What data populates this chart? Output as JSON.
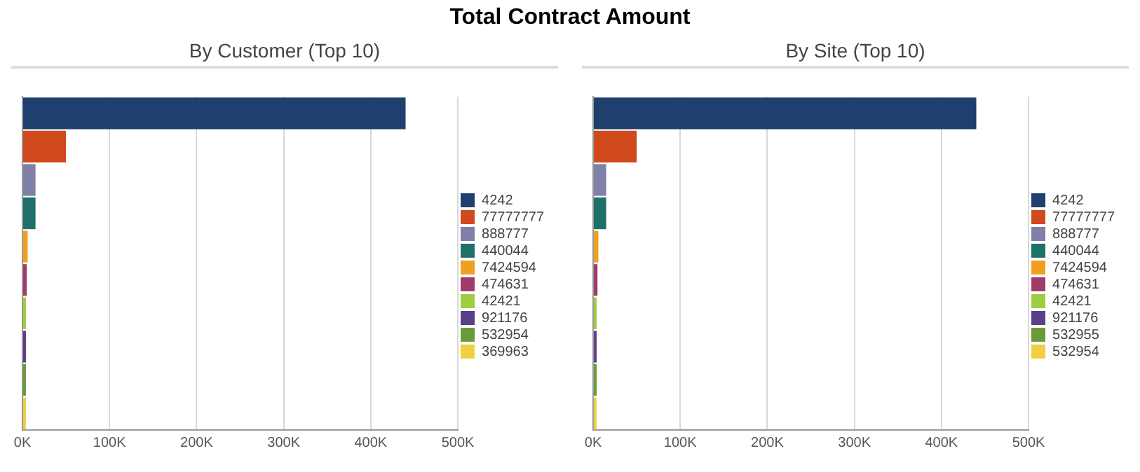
{
  "chart_data": [
    {
      "type": "bar",
      "orientation": "horizontal",
      "title": "Total Contract Amount",
      "subtitle": "By Customer (Top 10)",
      "categories": [
        null,
        null,
        null,
        null,
        null,
        null,
        null,
        null,
        null,
        null
      ],
      "series": [
        {
          "name": "4242",
          "color": "#1f3f6e",
          "values": [
            440000,
            null,
            null,
            null,
            null,
            null,
            null,
            null,
            null,
            null
          ]
        },
        {
          "name": "77777777",
          "color": "#d04a1e",
          "values": [
            null,
            50000,
            null,
            null,
            null,
            null,
            null,
            null,
            null,
            null
          ]
        },
        {
          "name": "888777",
          "color": "#7f7fa8",
          "values": [
            null,
            null,
            15000,
            null,
            null,
            null,
            null,
            null,
            null,
            null
          ]
        },
        {
          "name": "440044",
          "color": "#1e7068",
          "values": [
            null,
            null,
            null,
            15000,
            null,
            null,
            null,
            null,
            null,
            null
          ]
        },
        {
          "name": "7424594",
          "color": "#f0a020",
          "values": [
            null,
            null,
            null,
            null,
            6000,
            null,
            null,
            null,
            null,
            null
          ]
        },
        {
          "name": "474631",
          "color": "#a03c6a",
          "values": [
            null,
            null,
            null,
            null,
            null,
            5000,
            null,
            null,
            null,
            null
          ]
        },
        {
          "name": "42421",
          "color": "#a0cc40",
          "values": [
            null,
            null,
            null,
            null,
            null,
            null,
            4000,
            null,
            null,
            null
          ]
        },
        {
          "name": "921176",
          "color": "#5a4088",
          "values": [
            null,
            null,
            null,
            null,
            null,
            null,
            null,
            4000,
            null,
            null
          ]
        },
        {
          "name": "532954",
          "color": "#6a9a3a",
          "values": [
            null,
            null,
            null,
            null,
            null,
            null,
            null,
            null,
            4000,
            null
          ]
        },
        {
          "name": "369963",
          "color": "#f0d040",
          "values": [
            null,
            null,
            null,
            null,
            null,
            null,
            null,
            null,
            null,
            4000
          ]
        }
      ],
      "xlim": [
        0,
        500000
      ],
      "xticks": [
        {
          "value": 0,
          "label": "0K"
        },
        {
          "value": 100000,
          "label": "100K"
        },
        {
          "value": 200000,
          "label": "200K"
        },
        {
          "value": 300000,
          "label": "300K"
        },
        {
          "value": 400000,
          "label": "400K"
        },
        {
          "value": 500000,
          "label": "500K"
        }
      ],
      "grid": "x",
      "legend": "right",
      "tick_labels": "x"
    },
    {
      "type": "bar",
      "orientation": "horizontal",
      "subtitle": "By Site (Top 10)",
      "categories": [
        null,
        null,
        null,
        null,
        null,
        null,
        null,
        null,
        null,
        null
      ],
      "series": [
        {
          "name": "4242",
          "color": "#1f3f6e",
          "values": [
            440000,
            null,
            null,
            null,
            null,
            null,
            null,
            null,
            null,
            null
          ]
        },
        {
          "name": "77777777",
          "color": "#d04a1e",
          "values": [
            null,
            50000,
            null,
            null,
            null,
            null,
            null,
            null,
            null,
            null
          ]
        },
        {
          "name": "888777",
          "color": "#7f7fa8",
          "values": [
            null,
            null,
            15000,
            null,
            null,
            null,
            null,
            null,
            null,
            null
          ]
        },
        {
          "name": "440044",
          "color": "#1e7068",
          "values": [
            null,
            null,
            null,
            15000,
            null,
            null,
            null,
            null,
            null,
            null
          ]
        },
        {
          "name": "7424594",
          "color": "#f0a020",
          "values": [
            null,
            null,
            null,
            null,
            6000,
            null,
            null,
            null,
            null,
            null
          ]
        },
        {
          "name": "474631",
          "color": "#a03c6a",
          "values": [
            null,
            null,
            null,
            null,
            null,
            5000,
            null,
            null,
            null,
            null
          ]
        },
        {
          "name": "42421",
          "color": "#a0cc40",
          "values": [
            null,
            null,
            null,
            null,
            null,
            null,
            4000,
            null,
            null,
            null
          ]
        },
        {
          "name": "921176",
          "color": "#5a4088",
          "values": [
            null,
            null,
            null,
            null,
            null,
            null,
            null,
            4000,
            null,
            null
          ]
        },
        {
          "name": "532955",
          "color": "#6a9a3a",
          "values": [
            null,
            null,
            null,
            null,
            null,
            null,
            null,
            null,
            4000,
            null
          ]
        },
        {
          "name": "532954",
          "color": "#f0d040",
          "values": [
            null,
            null,
            null,
            null,
            null,
            null,
            null,
            null,
            null,
            4000
          ]
        }
      ],
      "xlim": [
        0,
        500000
      ],
      "xticks": [
        {
          "value": 0,
          "label": "0K"
        },
        {
          "value": 100000,
          "label": "100K"
        },
        {
          "value": 200000,
          "label": "200K"
        },
        {
          "value": 300000,
          "label": "300K"
        },
        {
          "value": 400000,
          "label": "400K"
        },
        {
          "value": 500000,
          "label": "500K"
        }
      ],
      "grid": "x",
      "legend": "right",
      "tick_labels": "x"
    }
  ]
}
